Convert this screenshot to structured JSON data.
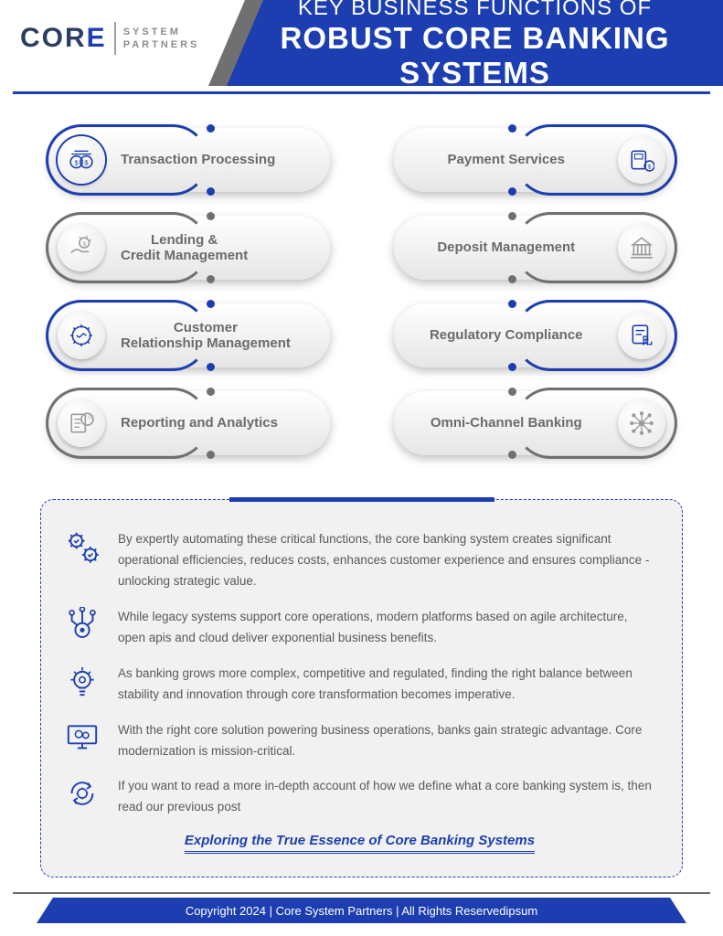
{
  "colors": {
    "primary": "#1c3eb0",
    "grey": "#707070",
    "text_grey": "#6b6b6b",
    "icon_grey": "#9b9b9b"
  },
  "logo": {
    "main": "COR",
    "accent": "E",
    "line1": "SYSTEM",
    "line2": "PARTNERS"
  },
  "header": {
    "line1": "KEY BUSINESS FUNCTIONS OF",
    "line2": "ROBUST CORE BANKING SYSTEMS"
  },
  "pills": [
    {
      "label": "Transaction Processing",
      "icon_side": "left",
      "arc_side": "left",
      "color": "#1c3eb0",
      "icon_color": "#1c3eb0",
      "icon": "coins",
      "ring": true
    },
    {
      "label": "Payment Services",
      "icon_side": "right",
      "arc_side": "right",
      "color": "#1c3eb0",
      "icon_color": "#1c3eb0",
      "icon": "pay",
      "ring": false
    },
    {
      "label": "Lending &\nCredit Management",
      "icon_side": "left",
      "arc_side": "left",
      "color": "#707070",
      "icon_color": "#9b9b9b",
      "icon": "hand",
      "ring": false
    },
    {
      "label": "Deposit Management",
      "icon_side": "right",
      "arc_side": "right",
      "color": "#707070",
      "icon_color": "#9b9b9b",
      "icon": "bank",
      "ring": false
    },
    {
      "label": "Customer\nRelationship Management",
      "icon_side": "left",
      "arc_side": "left",
      "color": "#1c3eb0",
      "icon_color": "#1c3eb0",
      "icon": "gearshake",
      "ring": false
    },
    {
      "label": "Regulatory Compliance",
      "icon_side": "right",
      "arc_side": "right",
      "color": "#1c3eb0",
      "icon_color": "#1c3eb0",
      "icon": "check",
      "ring": false
    },
    {
      "label": "Reporting and Analytics",
      "icon_side": "left",
      "arc_side": "left",
      "color": "#707070",
      "icon_color": "#9b9b9b",
      "icon": "report",
      "ring": false
    },
    {
      "label": "Omni-Channel Banking",
      "icon_side": "right",
      "arc_side": "right",
      "color": "#707070",
      "icon_color": "#9b9b9b",
      "icon": "hub",
      "ring": false
    }
  ],
  "summary": [
    {
      "icon": "gears",
      "text": "By expertly automating these critical functions, the core banking system  creates significant operational efficiencies, reduces costs, enhances customer experience and ensures compliance - unlocking strategic value."
    },
    {
      "icon": "circuit",
      "text": "While legacy systems support core operations, modern platforms based on agile architecture, open apis and cloud deliver exponential business benefits."
    },
    {
      "icon": "bulb",
      "text": "As banking grows more complex, competitive and regulated, finding the right balance between stability and innovation through core transformation becomes imperative."
    },
    {
      "icon": "screen",
      "text": "With the right core solution powering business operations, banks gain strategic advantage. Core modernization is mission-critical."
    },
    {
      "icon": "cycle",
      "text": "If you want to read a more in-depth account of how we define what a core banking system is, then read our previous post"
    }
  ],
  "cta": "Exploring the True Essence of Core Banking Systems",
  "footer": "Copyright 2024 | Core System Partners | All Rights Reservedipsum"
}
